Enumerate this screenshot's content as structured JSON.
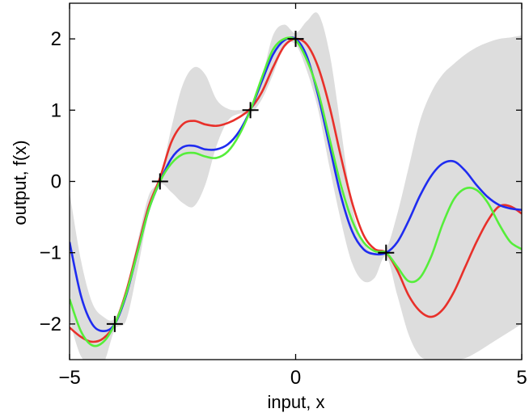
{
  "chart_data": {
    "type": "line",
    "xlabel": "input, x",
    "ylabel": "output, f(x)",
    "xlim": [
      -5,
      5
    ],
    "ylim": [
      -2.5,
      2.5
    ],
    "xticks": [
      -5,
      0,
      5
    ],
    "yticks": [
      -2,
      -1,
      0,
      1,
      2
    ],
    "xtick_labels": [
      "−5",
      "0",
      "5"
    ],
    "ytick_labels": [
      "−2",
      "−1",
      "0",
      "1",
      "2"
    ],
    "grid": false,
    "legend": "none",
    "band": {
      "fill": "#dddddd",
      "x": [
        -5,
        -4.75,
        -4.5,
        -4.25,
        -4,
        -3.75,
        -3.5,
        -3.25,
        -3,
        -2.75,
        -2.5,
        -2.25,
        -2,
        -1.75,
        -1.5,
        -1.25,
        -1,
        -0.75,
        -0.5,
        -0.25,
        0,
        0.25,
        0.5,
        0.75,
        1,
        1.25,
        1.5,
        1.75,
        2,
        2.25,
        2.5,
        2.75,
        3,
        3.25,
        3.5,
        3.75,
        4,
        4.25,
        4.5,
        4.75,
        5
      ],
      "upper": [
        -0.15,
        -1.1,
        -1.7,
        -1.9,
        -1.92,
        -1.5,
        -0.85,
        -0.2,
        0.05,
        0.75,
        1.35,
        1.6,
        1.5,
        1.15,
        1.02,
        1.0,
        1.05,
        1.45,
        2.05,
        2.2,
        2.08,
        2.25,
        2.35,
        1.8,
        0.75,
        -0.35,
        -0.85,
        -1.0,
        -0.95,
        -0.45,
        0.2,
        0.85,
        1.25,
        1.5,
        1.65,
        1.78,
        1.88,
        1.95,
        2.0,
        2.02,
        2.05
      ],
      "lower": [
        -1.95,
        -2.45,
        -2.55,
        -2.55,
        -2.08,
        -1.95,
        -1.25,
        -0.45,
        -0.05,
        -0.15,
        -0.3,
        -0.35,
        -0.05,
        0.5,
        0.85,
        0.95,
        0.95,
        1.15,
        1.5,
        1.9,
        1.92,
        1.55,
        1.0,
        0.2,
        -0.55,
        -1.15,
        -1.4,
        -1.35,
        -1.05,
        -1.6,
        -2.15,
        -2.45,
        -2.5,
        -2.5,
        -2.5,
        -2.48,
        -2.4,
        -2.3,
        -2.2,
        -2.1,
        -2.0
      ]
    },
    "series": [
      {
        "color": "#e8302a",
        "x": [
          -5,
          -4.75,
          -4.5,
          -4.25,
          -4,
          -3.75,
          -3.5,
          -3.25,
          -3,
          -2.75,
          -2.5,
          -2.25,
          -2,
          -1.75,
          -1.5,
          -1.25,
          -1,
          -0.75,
          -0.5,
          -0.25,
          0,
          0.25,
          0.5,
          0.75,
          1,
          1.25,
          1.5,
          1.75,
          2,
          2.25,
          2.5,
          2.75,
          3,
          3.25,
          3.5,
          3.75,
          4,
          4.25,
          4.5,
          4.75,
          5
        ],
        "y": [
          -2.05,
          -2.18,
          -2.25,
          -2.2,
          -2.0,
          -1.55,
          -0.95,
          -0.35,
          0.05,
          0.55,
          0.8,
          0.85,
          0.8,
          0.78,
          0.82,
          0.9,
          1.02,
          1.25,
          1.6,
          1.9,
          2.0,
          1.92,
          1.6,
          1.05,
          0.35,
          -0.3,
          -0.75,
          -0.95,
          -1.0,
          -1.25,
          -1.6,
          -1.82,
          -1.9,
          -1.8,
          -1.55,
          -1.2,
          -0.85,
          -0.55,
          -0.35,
          -0.35,
          -0.45
        ]
      },
      {
        "color": "#1f2cf0",
        "x": [
          -5,
          -4.75,
          -4.5,
          -4.25,
          -4,
          -3.75,
          -3.5,
          -3.25,
          -3,
          -2.75,
          -2.5,
          -2.25,
          -2,
          -1.75,
          -1.5,
          -1.25,
          -1,
          -0.75,
          -0.5,
          -0.25,
          0,
          0.25,
          0.5,
          0.75,
          1,
          1.25,
          1.5,
          1.75,
          2,
          2.25,
          2.5,
          2.75,
          3,
          3.25,
          3.5,
          3.75,
          4,
          4.25,
          4.5,
          4.75,
          5
        ],
        "y": [
          -0.85,
          -1.6,
          -2.0,
          -2.1,
          -2.0,
          -1.6,
          -1.0,
          -0.4,
          0.0,
          0.32,
          0.48,
          0.5,
          0.45,
          0.45,
          0.52,
          0.7,
          1.0,
          1.4,
          1.78,
          1.98,
          2.0,
          1.75,
          1.2,
          0.5,
          -0.2,
          -0.7,
          -0.95,
          -1.02,
          -1.0,
          -0.85,
          -0.55,
          -0.2,
          0.08,
          0.25,
          0.28,
          0.15,
          -0.05,
          -0.22,
          -0.33,
          -0.38,
          -0.4
        ]
      },
      {
        "color": "#55ee3a",
        "x": [
          -5,
          -4.75,
          -4.5,
          -4.25,
          -4,
          -3.75,
          -3.5,
          -3.25,
          -3,
          -2.75,
          -2.5,
          -2.25,
          -2,
          -1.75,
          -1.5,
          -1.25,
          -1,
          -0.75,
          -0.5,
          -0.25,
          0,
          0.25,
          0.5,
          0.75,
          1,
          1.25,
          1.5,
          1.75,
          2,
          2.25,
          2.5,
          2.75,
          3,
          3.25,
          3.5,
          3.75,
          4,
          4.25,
          4.5,
          4.75,
          5
        ],
        "y": [
          -1.65,
          -2.1,
          -2.3,
          -2.25,
          -2.0,
          -1.58,
          -1.0,
          -0.4,
          0.0,
          0.25,
          0.38,
          0.4,
          0.35,
          0.33,
          0.42,
          0.65,
          1.0,
          1.45,
          1.85,
          2.0,
          1.98,
          1.7,
          1.25,
          0.6,
          -0.05,
          -0.55,
          -0.85,
          -0.98,
          -1.0,
          -1.2,
          -1.4,
          -1.35,
          -1.05,
          -0.6,
          -0.25,
          -0.1,
          -0.12,
          -0.3,
          -0.6,
          -0.85,
          -0.95
        ]
      }
    ],
    "observations": {
      "x": [
        -4,
        -3,
        -1,
        0,
        2
      ],
      "y": [
        -2,
        0,
        1,
        2,
        -1
      ]
    }
  }
}
